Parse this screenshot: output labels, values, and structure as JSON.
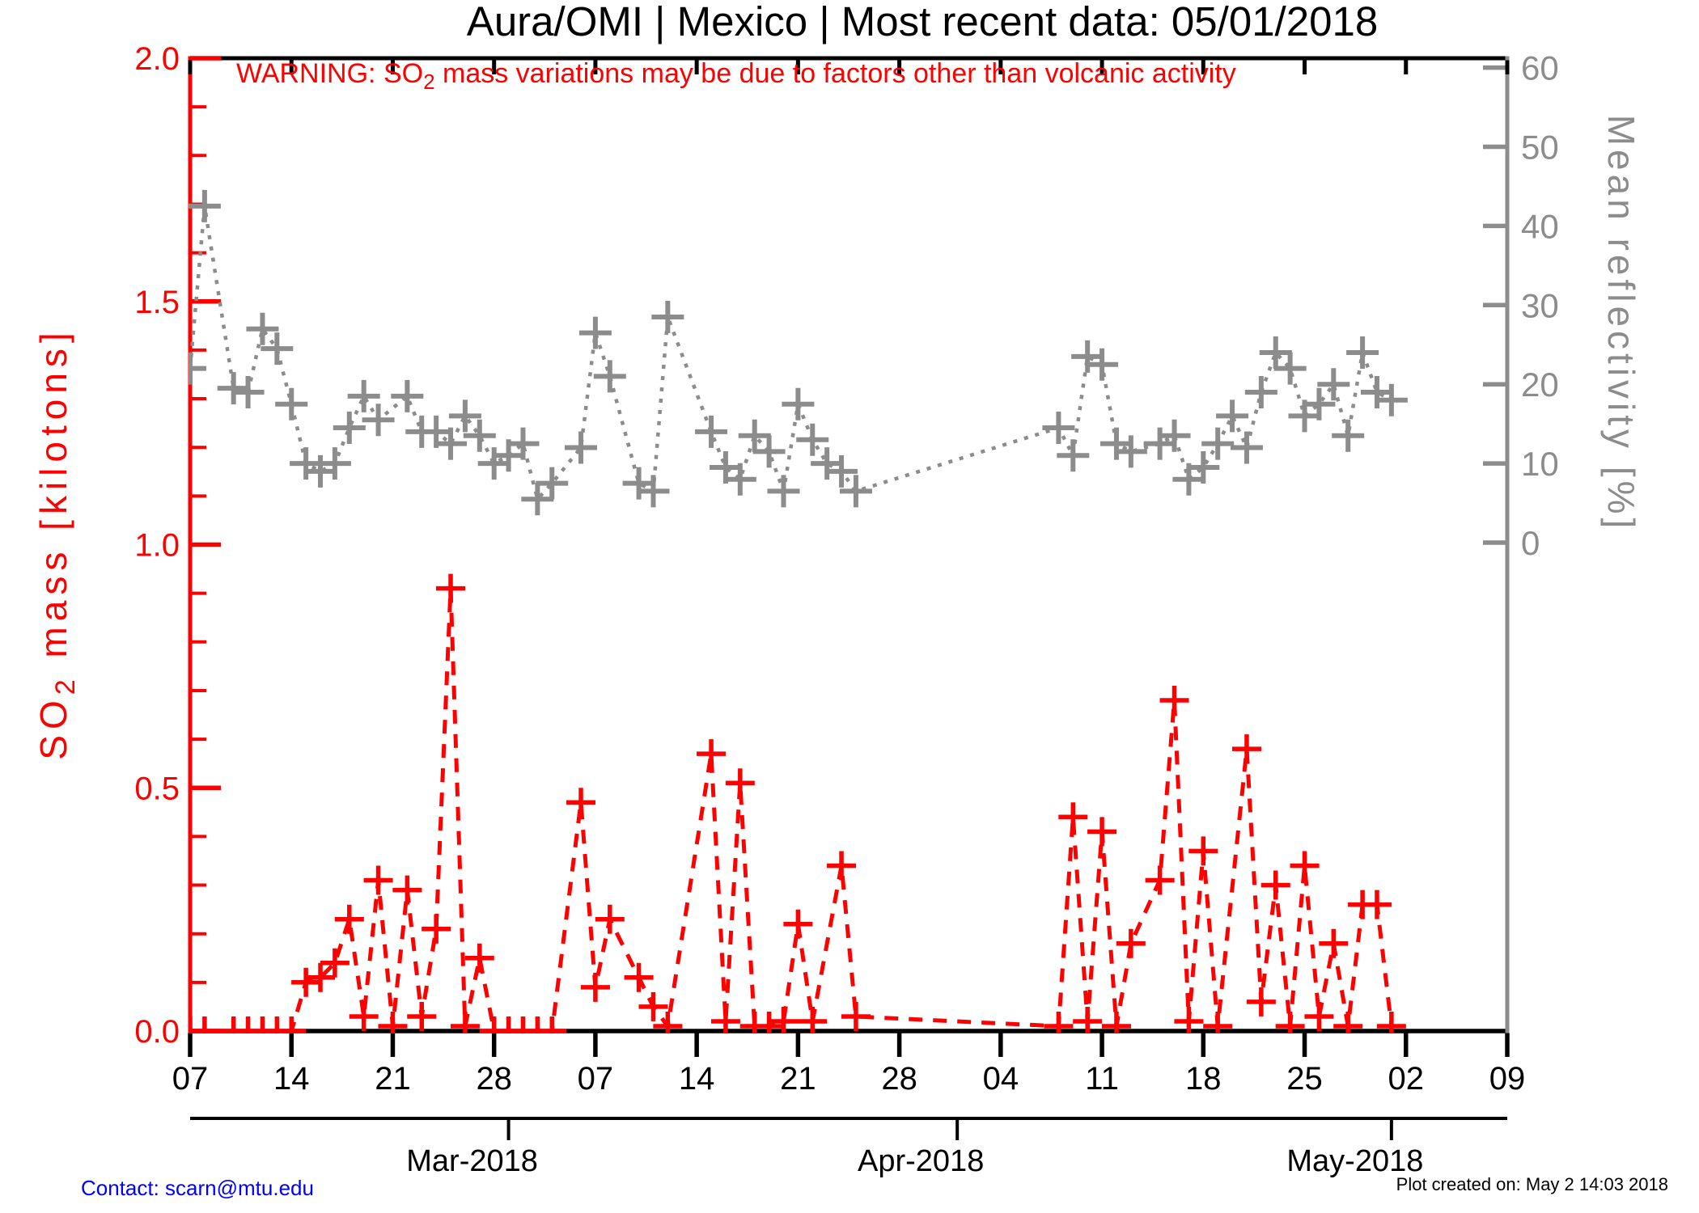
{
  "title": "Aura/OMI | Mexico | Most recent data: 05/01/2018",
  "warning": {
    "prefix": "WARNING: SO",
    "sub": "2",
    "suffix": " mass variations may be due to factors other than volcanic activity"
  },
  "left_axis": {
    "title_prefix": "SO",
    "title_sub": "2",
    "title_suffix": " mass [kilotons]",
    "color": "#ff0000",
    "major_ticks": [
      {
        "v": 0.0,
        "label": "0.0"
      },
      {
        "v": 0.5,
        "label": "0.5"
      },
      {
        "v": 1.0,
        "label": "1.0"
      },
      {
        "v": 1.5,
        "label": "1.5"
      },
      {
        "v": 2.0,
        "label": "2.0"
      }
    ],
    "minor_step": 0.1,
    "range": [
      0.0,
      2.0
    ]
  },
  "right_axis": {
    "title": "Mean reflectivity [%]",
    "color": "#8c8c8c",
    "major_ticks": [
      {
        "v": 0,
        "label": "0"
      },
      {
        "v": 10,
        "label": "10"
      },
      {
        "v": 20,
        "label": "20"
      },
      {
        "v": 30,
        "label": "30"
      },
      {
        "v": 40,
        "label": "40"
      },
      {
        "v": 50,
        "label": "50"
      },
      {
        "v": 60,
        "label": "60"
      }
    ],
    "labeled_range": [
      0,
      60
    ]
  },
  "x_axis": {
    "start_date": "Feb 07 2018",
    "end_date": "May 09 2018",
    "week_ticks": [
      {
        "d": 0,
        "label": "07"
      },
      {
        "d": 7,
        "label": "14"
      },
      {
        "d": 14,
        "label": "21"
      },
      {
        "d": 21,
        "label": "28"
      },
      {
        "d": 28,
        "label": "07"
      },
      {
        "d": 35,
        "label": "14"
      },
      {
        "d": 42,
        "label": "21"
      },
      {
        "d": 49,
        "label": "28"
      },
      {
        "d": 56,
        "label": "04"
      },
      {
        "d": 63,
        "label": "11"
      },
      {
        "d": 70,
        "label": "18"
      },
      {
        "d": 77,
        "label": "25"
      },
      {
        "d": 84,
        "label": "02"
      },
      {
        "d": 91,
        "label": "09"
      }
    ],
    "months": [
      {
        "label": "Mar-2018",
        "d": 22
      },
      {
        "label": "Apr-2018",
        "d": 53
      },
      {
        "label": "May-2018",
        "d": 83
      }
    ]
  },
  "footer": {
    "contact": "Contact: scarn@mtu.edu",
    "created": "Plot created on: May  2 14:03 2018"
  },
  "chart_data": {
    "type": "line",
    "title": "Aura/OMI | Mexico | Most recent data: 05/01/2018",
    "xlabel": "Date (Feb 07 2018 - May 09 2018, d = days since Feb 07)",
    "ylabel_left": "SO2 mass [kilotons]",
    "ylabel_right": "Mean reflectivity [%]",
    "ylim_left": [
      0.0,
      2.0
    ],
    "ylim_right_labeled": [
      0,
      60
    ],
    "grid": false,
    "legend": "none",
    "series": [
      {
        "name": "SO2 mass",
        "axis": "left",
        "color": "#ff0000",
        "line_style": "dashed",
        "marker": "plus",
        "points": [
          {
            "date": "Feb 07",
            "d": 0,
            "v": 0.0
          },
          {
            "date": "Feb 08",
            "d": 1,
            "v": 0.0
          },
          {
            "date": "Feb 10",
            "d": 3,
            "v": 0.0
          },
          {
            "date": "Feb 11",
            "d": 4,
            "v": 0.0
          },
          {
            "date": "Feb 12",
            "d": 5,
            "v": 0.0
          },
          {
            "date": "Feb 13",
            "d": 6,
            "v": 0.0
          },
          {
            "date": "Feb 14",
            "d": 7,
            "v": 0.0
          },
          {
            "date": "Feb 15",
            "d": 8,
            "v": 0.1
          },
          {
            "date": "Feb 16",
            "d": 9,
            "v": 0.11
          },
          {
            "date": "Feb 17",
            "d": 10,
            "v": 0.14
          },
          {
            "date": "Feb 18",
            "d": 11,
            "v": 0.23
          },
          {
            "date": "Feb 19",
            "d": 12,
            "v": 0.03
          },
          {
            "date": "Feb 20",
            "d": 13,
            "v": 0.31
          },
          {
            "date": "Feb 21",
            "d": 14,
            "v": 0.01
          },
          {
            "date": "Feb 22",
            "d": 15,
            "v": 0.29
          },
          {
            "date": "Feb 23",
            "d": 16,
            "v": 0.03
          },
          {
            "date": "Feb 24",
            "d": 17,
            "v": 0.21
          },
          {
            "date": "Feb 25",
            "d": 18,
            "v": 0.91
          },
          {
            "date": "Feb 26",
            "d": 19,
            "v": 0.01
          },
          {
            "date": "Feb 27",
            "d": 20,
            "v": 0.15
          },
          {
            "date": "Feb 28",
            "d": 21,
            "v": 0.0
          },
          {
            "date": "Mar 01",
            "d": 22,
            "v": 0.0
          },
          {
            "date": "Mar 02",
            "d": 23,
            "v": 0.0
          },
          {
            "date": "Mar 03",
            "d": 24,
            "v": 0.0
          },
          {
            "date": "Mar 04",
            "d": 25,
            "v": 0.0
          },
          {
            "date": "Mar 06",
            "d": 27,
            "v": 0.47
          },
          {
            "date": "Mar 07",
            "d": 28,
            "v": 0.09
          },
          {
            "date": "Mar 08",
            "d": 29,
            "v": 0.23
          },
          {
            "date": "Mar 10",
            "d": 31,
            "v": 0.11
          },
          {
            "date": "Mar 11",
            "d": 32,
            "v": 0.05
          },
          {
            "date": "Mar 12",
            "d": 33,
            "v": 0.01
          },
          {
            "date": "Mar 15",
            "d": 36,
            "v": 0.57
          },
          {
            "date": "Mar 16",
            "d": 37,
            "v": 0.02
          },
          {
            "date": "Mar 17",
            "d": 38,
            "v": 0.51
          },
          {
            "date": "Mar 18",
            "d": 39,
            "v": 0.01
          },
          {
            "date": "Mar 19",
            "d": 40,
            "v": 0.01
          },
          {
            "date": "Mar 20",
            "d": 41,
            "v": 0.02
          },
          {
            "date": "Mar 21",
            "d": 42,
            "v": 0.22
          },
          {
            "date": "Mar 22",
            "d": 43,
            "v": 0.02
          },
          {
            "date": "Mar 24",
            "d": 45,
            "v": 0.34
          },
          {
            "date": "Mar 25",
            "d": 46,
            "v": 0.03
          },
          {
            "date": "Apr 08",
            "d": 60,
            "v": 0.01
          },
          {
            "date": "Apr 09",
            "d": 61,
            "v": 0.44
          },
          {
            "date": "Apr 10",
            "d": 62,
            "v": 0.02
          },
          {
            "date": "Apr 11",
            "d": 63,
            "v": 0.41
          },
          {
            "date": "Apr 12",
            "d": 64,
            "v": 0.01
          },
          {
            "date": "Apr 13",
            "d": 65,
            "v": 0.18
          },
          {
            "date": "Apr 15",
            "d": 67,
            "v": 0.31
          },
          {
            "date": "Apr 16",
            "d": 68,
            "v": 0.68
          },
          {
            "date": "Apr 17",
            "d": 69,
            "v": 0.02
          },
          {
            "date": "Apr 18",
            "d": 70,
            "v": 0.37
          },
          {
            "date": "Apr 19",
            "d": 71,
            "v": 0.01
          },
          {
            "date": "Apr 21",
            "d": 73,
            "v": 0.58
          },
          {
            "date": "Apr 22",
            "d": 74,
            "v": 0.06
          },
          {
            "date": "Apr 23",
            "d": 75,
            "v": 0.3
          },
          {
            "date": "Apr 24",
            "d": 76,
            "v": 0.01
          },
          {
            "date": "Apr 25",
            "d": 77,
            "v": 0.34
          },
          {
            "date": "Apr 26",
            "d": 78,
            "v": 0.03
          },
          {
            "date": "Apr 27",
            "d": 79,
            "v": 0.18
          },
          {
            "date": "Apr 28",
            "d": 80,
            "v": 0.01
          },
          {
            "date": "Apr 29",
            "d": 81,
            "v": 0.26
          },
          {
            "date": "Apr 30",
            "d": 82,
            "v": 0.26
          },
          {
            "date": "May 01",
            "d": 83,
            "v": 0.01
          }
        ]
      },
      {
        "name": "Mean reflectivity",
        "axis": "right",
        "color": "#8c8c8c",
        "line_style": "dotted",
        "marker": "plus",
        "points": [
          {
            "date": "Feb 07",
            "d": 0,
            "v": 22
          },
          {
            "date": "Feb 08",
            "d": 1,
            "v": 42.5
          },
          {
            "date": "Feb 10",
            "d": 3,
            "v": 19.5
          },
          {
            "date": "Feb 11",
            "d": 4,
            "v": 19
          },
          {
            "date": "Feb 12",
            "d": 5,
            "v": 27
          },
          {
            "date": "Feb 13",
            "d": 6,
            "v": 24.5
          },
          {
            "date": "Feb 14",
            "d": 7,
            "v": 17.5
          },
          {
            "date": "Feb 15",
            "d": 8,
            "v": 10
          },
          {
            "date": "Feb 16",
            "d": 9,
            "v": 9
          },
          {
            "date": "Feb 17",
            "d": 10,
            "v": 10
          },
          {
            "date": "Feb 18",
            "d": 11,
            "v": 14.5
          },
          {
            "date": "Feb 19",
            "d": 12,
            "v": 18.5
          },
          {
            "date": "Feb 20",
            "d": 13,
            "v": 15.5
          },
          {
            "date": "Feb 22",
            "d": 15,
            "v": 18.5
          },
          {
            "date": "Feb 23",
            "d": 16,
            "v": 14
          },
          {
            "date": "Feb 24",
            "d": 17,
            "v": 14
          },
          {
            "date": "Feb 25",
            "d": 18,
            "v": 12.5
          },
          {
            "date": "Feb 26",
            "d": 19,
            "v": 16
          },
          {
            "date": "Feb 27",
            "d": 20,
            "v": 13.5
          },
          {
            "date": "Feb 28",
            "d": 21,
            "v": 10
          },
          {
            "date": "Mar 01",
            "d": 22,
            "v": 11
          },
          {
            "date": "Mar 02",
            "d": 23,
            "v": 12.5
          },
          {
            "date": "Mar 03",
            "d": 24,
            "v": 5.5
          },
          {
            "date": "Mar 04",
            "d": 25,
            "v": 7.5
          },
          {
            "date": "Mar 06",
            "d": 27,
            "v": 12
          },
          {
            "date": "Mar 07",
            "d": 28,
            "v": 26.5
          },
          {
            "date": "Mar 08",
            "d": 29,
            "v": 21
          },
          {
            "date": "Mar 10",
            "d": 31,
            "v": 7.5
          },
          {
            "date": "Mar 11",
            "d": 32,
            "v": 6.5
          },
          {
            "date": "Mar 12",
            "d": 33,
            "v": 28.5
          },
          {
            "date": "Mar 15",
            "d": 36,
            "v": 14
          },
          {
            "date": "Mar 16",
            "d": 37,
            "v": 9.5
          },
          {
            "date": "Mar 17",
            "d": 38,
            "v": 8
          },
          {
            "date": "Mar 18",
            "d": 39,
            "v": 13.5
          },
          {
            "date": "Mar 19",
            "d": 40,
            "v": 11.5
          },
          {
            "date": "Mar 20",
            "d": 41,
            "v": 6.5
          },
          {
            "date": "Mar 21",
            "d": 42,
            "v": 17.5
          },
          {
            "date": "Mar 22",
            "d": 43,
            "v": 13
          },
          {
            "date": "Mar 23",
            "d": 44,
            "v": 10
          },
          {
            "date": "Mar 24",
            "d": 45,
            "v": 9
          },
          {
            "date": "Mar 25",
            "d": 46,
            "v": 6.5
          },
          {
            "date": "Apr 08",
            "d": 60,
            "v": 14.5
          },
          {
            "date": "Apr 09",
            "d": 61,
            "v": 11
          },
          {
            "date": "Apr 10",
            "d": 62,
            "v": 23.5
          },
          {
            "date": "Apr 11",
            "d": 63,
            "v": 22.5
          },
          {
            "date": "Apr 12",
            "d": 64,
            "v": 12.5
          },
          {
            "date": "Apr 13",
            "d": 65,
            "v": 11.5
          },
          {
            "date": "Apr 15",
            "d": 67,
            "v": 12.5
          },
          {
            "date": "Apr 16",
            "d": 68,
            "v": 13.5
          },
          {
            "date": "Apr 17",
            "d": 69,
            "v": 8
          },
          {
            "date": "Apr 18",
            "d": 70,
            "v": 9.5
          },
          {
            "date": "Apr 19",
            "d": 71,
            "v": 12.5
          },
          {
            "date": "Apr 20",
            "d": 72,
            "v": 16
          },
          {
            "date": "Apr 21",
            "d": 73,
            "v": 12
          },
          {
            "date": "Apr 22",
            "d": 74,
            "v": 19
          },
          {
            "date": "Apr 23",
            "d": 75,
            "v": 24
          },
          {
            "date": "Apr 24",
            "d": 76,
            "v": 22
          },
          {
            "date": "Apr 25",
            "d": 77,
            "v": 16
          },
          {
            "date": "Apr 26",
            "d": 78,
            "v": 17.5
          },
          {
            "date": "Apr 27",
            "d": 79,
            "v": 20
          },
          {
            "date": "Apr 28",
            "d": 80,
            "v": 13.5
          },
          {
            "date": "Apr 29",
            "d": 81,
            "v": 24
          },
          {
            "date": "Apr 30",
            "d": 82,
            "v": 19
          },
          {
            "date": "May 01",
            "d": 83,
            "v": 18
          }
        ]
      }
    ]
  }
}
